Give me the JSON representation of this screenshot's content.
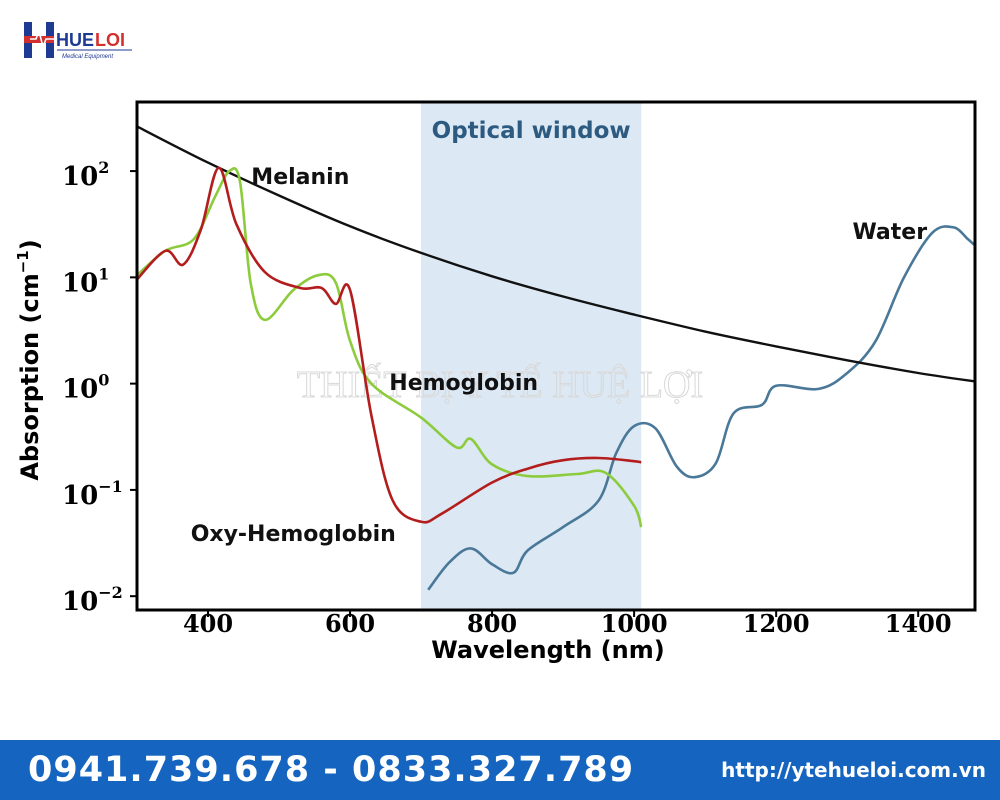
{
  "logo": {
    "brand_he": "HUE",
    "brand_loi": "LOI",
    "tagline": "Medical Equipment"
  },
  "watermark": "THIẾT BỊ Y TẾ HUỆ LỢI",
  "footer": {
    "phones": "0941.739.678 - 0833.327.789",
    "website": "http://ytehueloi.com.vn"
  },
  "colors": {
    "melanin": "#111111",
    "water": "#4a7898",
    "hemoglobin": "#8ccc3c",
    "oxy_hemoglobin": "#b31d1d",
    "optical_window": "#dce8f3",
    "optical_window_label": "#2c5a80",
    "footer_bg": "#1565c0"
  },
  "chart_data": {
    "type": "line",
    "xlabel": "Wavelength (nm)",
    "ylabel": "Absorption (cm",
    "ylabel_sup": "−1",
    "ylabel_close": ")",
    "ylabel_scale": "log",
    "xlim": [
      300,
      1480
    ],
    "ylim_log10": [
      -2.13,
      2.65
    ],
    "x_ticks": [
      {
        "value": 400,
        "label": "400"
      },
      {
        "value": 600,
        "label": "600"
      },
      {
        "value": 800,
        "label": "800"
      },
      {
        "value": 1000,
        "label": "1000"
      },
      {
        "value": 1200,
        "label": "1200"
      },
      {
        "value": 1400,
        "label": "1400"
      }
    ],
    "y_ticks": [
      {
        "exp": 2,
        "base": "10",
        "sup": "2"
      },
      {
        "exp": 1,
        "base": "10",
        "sup": "1"
      },
      {
        "exp": 0,
        "base": "10",
        "sup": "0"
      },
      {
        "exp": -1,
        "base": "10",
        "sup": "−1"
      },
      {
        "exp": -2,
        "base": "10",
        "sup": "−2"
      }
    ],
    "optical_window": {
      "label": "Optical window",
      "x_start": 700,
      "x_end": 1010
    },
    "series": [
      {
        "name": "Melanin",
        "key": "melanin",
        "label_position": [
          530,
          1.88
        ],
        "points": [
          [
            300,
            2.42
          ],
          [
            400,
            2.08
          ],
          [
            500,
            1.77
          ],
          [
            600,
            1.48
          ],
          [
            700,
            1.23
          ],
          [
            800,
            1.01
          ],
          [
            900,
            0.82
          ],
          [
            1000,
            0.65
          ],
          [
            1100,
            0.49
          ],
          [
            1200,
            0.35
          ],
          [
            1300,
            0.22
          ],
          [
            1400,
            0.1
          ],
          [
            1480,
            0.02
          ]
        ]
      },
      {
        "name": "Water",
        "key": "water",
        "label_position": [
          1360,
          1.36
        ],
        "points": [
          [
            710,
            -1.94
          ],
          [
            740,
            -1.68
          ],
          [
            770,
            -1.55
          ],
          [
            800,
            -1.7
          ],
          [
            830,
            -1.78
          ],
          [
            850,
            -1.57
          ],
          [
            900,
            -1.35
          ],
          [
            950,
            -1.1
          ],
          [
            975,
            -0.65
          ],
          [
            1000,
            -0.4
          ],
          [
            1030,
            -0.42
          ],
          [
            1060,
            -0.78
          ],
          [
            1085,
            -0.88
          ],
          [
            1115,
            -0.75
          ],
          [
            1140,
            -0.28
          ],
          [
            1180,
            -0.2
          ],
          [
            1200,
            -0.02
          ],
          [
            1260,
            -0.05
          ],
          [
            1300,
            0.1
          ],
          [
            1340,
            0.4
          ],
          [
            1380,
            1.0
          ],
          [
            1420,
            1.42
          ],
          [
            1450,
            1.47
          ],
          [
            1470,
            1.36
          ],
          [
            1480,
            1.3
          ]
        ]
      },
      {
        "name": "Hemoglobin",
        "key": "hemoglobin",
        "label_position": [
          760,
          -0.06
        ],
        "points": [
          [
            300,
            1.02
          ],
          [
            340,
            1.25
          ],
          [
            380,
            1.36
          ],
          [
            410,
            1.76
          ],
          [
            430,
            2.0
          ],
          [
            445,
            1.9
          ],
          [
            460,
            0.95
          ],
          [
            480,
            0.6
          ],
          [
            520,
            0.88
          ],
          [
            555,
            1.02
          ],
          [
            580,
            0.95
          ],
          [
            600,
            0.4
          ],
          [
            630,
            0.0
          ],
          [
            700,
            -0.32
          ],
          [
            750,
            -0.6
          ],
          [
            770,
            -0.52
          ],
          [
            800,
            -0.76
          ],
          [
            850,
            -0.87
          ],
          [
            920,
            -0.85
          ],
          [
            960,
            -0.84
          ],
          [
            1000,
            -1.15
          ],
          [
            1010,
            -1.35
          ]
        ]
      },
      {
        "name": "Oxy-Hemoglobin",
        "key": "oxy_hemoglobin",
        "label_position": [
          520,
          -1.48
        ],
        "points": [
          [
            300,
            0.98
          ],
          [
            340,
            1.25
          ],
          [
            365,
            1.12
          ],
          [
            390,
            1.45
          ],
          [
            415,
            2.03
          ],
          [
            440,
            1.5
          ],
          [
            480,
            1.05
          ],
          [
            530,
            0.9
          ],
          [
            560,
            0.9
          ],
          [
            580,
            0.75
          ],
          [
            600,
            0.88
          ],
          [
            630,
            -0.3
          ],
          [
            660,
            -1.1
          ],
          [
            700,
            -1.3
          ],
          [
            730,
            -1.22
          ],
          [
            800,
            -0.93
          ],
          [
            850,
            -0.8
          ],
          [
            900,
            -0.72
          ],
          [
            950,
            -0.7
          ],
          [
            1000,
            -0.73
          ],
          [
            1010,
            -0.74
          ]
        ]
      }
    ]
  }
}
